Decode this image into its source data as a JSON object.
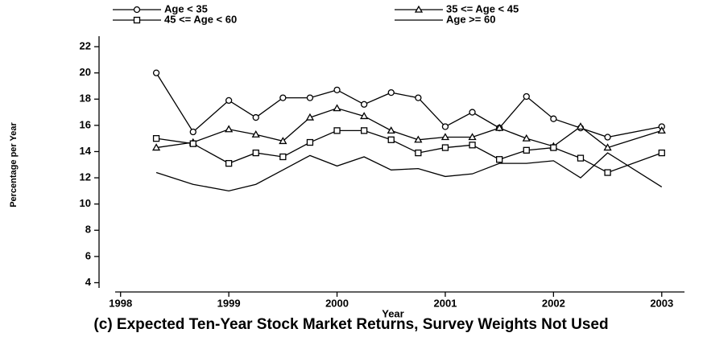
{
  "chart_data": {
    "type": "line",
    "title": "(c) Expected Ten-Year Stock Market Returns, Survey Weights Not Used",
    "x_label": "Year",
    "y_label": "Percentage per Year",
    "x": [
      1998.33,
      1998.67,
      1999,
      1999.25,
      1999.5,
      1999.75,
      2000,
      2000.25,
      2000.5,
      2000.75,
      2001,
      2001.25,
      2001.5,
      2001.75,
      2002,
      2002.25,
      2002.5,
      2003
    ],
    "series": [
      {
        "name": "Age < 35",
        "color": "#000000",
        "marker": "circle",
        "values": [
          20,
          15.5,
          17.9,
          16.6,
          18.1,
          18.1,
          18.7,
          17.6,
          18.5,
          18.1,
          15.9,
          17.0,
          15.8,
          18.2,
          16.5,
          15.8,
          15.1,
          15.9
        ]
      },
      {
        "name": "35 <= Age < 45",
        "color": "#000000",
        "marker": "triangle",
        "values": [
          14.3,
          14.7,
          15.7,
          15.3,
          14.8,
          16.6,
          17.3,
          16.7,
          15.6,
          14.9,
          15.1,
          15.1,
          15.8,
          15.0,
          14.4,
          15.9,
          14.3,
          15.6
        ]
      },
      {
        "name": "45 <= Age < 60",
        "color": "#000000",
        "marker": "square",
        "values": [
          15.0,
          14.6,
          13.1,
          13.9,
          13.6,
          14.7,
          15.6,
          15.6,
          14.9,
          13.9,
          14.3,
          14.5,
          13.4,
          14.1,
          14.3,
          13.5,
          12.4,
          13.9
        ]
      },
      {
        "name": "Age >= 60",
        "color": "#000000",
        "marker": "none",
        "values": [
          12.4,
          11.5,
          11.0,
          11.5,
          12.6,
          13.7,
          12.9,
          13.6,
          12.6,
          12.7,
          12.1,
          12.3,
          13.1,
          13.1,
          13.3,
          12.0,
          13.9,
          11.3
        ]
      }
    ],
    "xlim": [
      1997.95,
      2003.21
    ],
    "xticks": [
      1998,
      1999,
      2000,
      2001,
      2002,
      2003
    ],
    "ylim": [
      3.6,
      22.8
    ],
    "yticks": [
      4,
      6,
      8,
      10,
      12,
      14,
      16,
      18,
      20,
      22
    ],
    "grid": false
  }
}
